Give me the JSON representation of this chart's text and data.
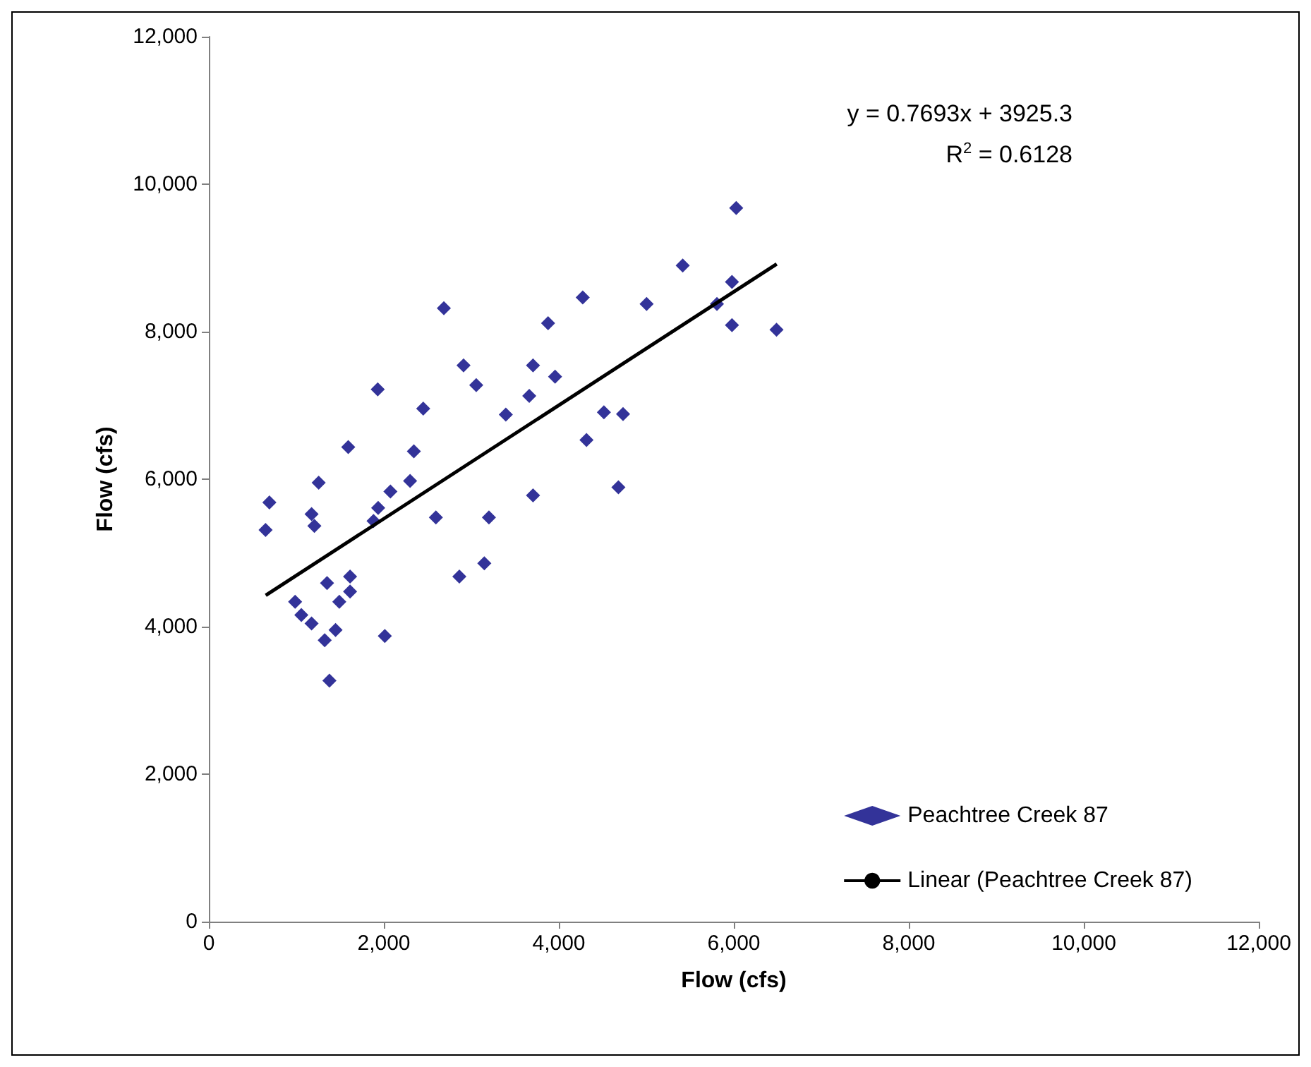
{
  "chart_data": {
    "type": "scatter",
    "xlabel": "Flow (cfs)",
    "ylabel": "Flow (cfs)",
    "xlim": [
      0,
      12000
    ],
    "ylim": [
      0,
      12000
    ],
    "xticks": [
      {
        "value": 0,
        "label": "0"
      },
      {
        "value": 2000,
        "label": "2,000"
      },
      {
        "value": 4000,
        "label": "4,000"
      },
      {
        "value": 6000,
        "label": "6,000"
      },
      {
        "value": 8000,
        "label": "8,000"
      },
      {
        "value": 10000,
        "label": "10,000"
      },
      {
        "value": 12000,
        "label": "12,000"
      }
    ],
    "yticks": [
      {
        "value": 0,
        "label": "0"
      },
      {
        "value": 2000,
        "label": "2,000"
      },
      {
        "value": 4000,
        "label": "4,000"
      },
      {
        "value": 6000,
        "label": "6,000"
      },
      {
        "value": 8000,
        "label": "8,000"
      },
      {
        "value": 10000,
        "label": "10,000"
      },
      {
        "value": 12000,
        "label": "12,000"
      }
    ],
    "grid": false,
    "legend": "bottom right",
    "marker": "diamond",
    "annotations": [
      "y = 0.7693x + 3925.3",
      "R$^{2}$ = 0.6128"
    ],
    "series": [
      {
        "name": "Peachtree Creek 87",
        "color": "#000080",
        "x": [
          648,
          692,
          986,
          1057,
          1174,
          1174,
          1206,
          1255,
          1351,
          1324,
          1378,
          1448,
          1491,
          1614,
          1614,
          1593,
          1882,
          1935,
          1930,
          2011,
          2075,
          2300,
          2343,
          2450,
          2595,
          2686,
          2863,
          2911,
          3056,
          3148,
          3201,
          3394,
          3662,
          3705,
          3705,
          3877,
          3957,
          4273,
          4316,
          4515,
          4734,
          4681,
          5003,
          5416,
          6027,
          5979,
          5807,
          5979,
          6488
        ],
        "values": [
          5310,
          5685,
          4337,
          4159,
          4044,
          5527,
          5367,
          5952,
          4592,
          3815,
          3268,
          3955,
          4337,
          4680,
          4477,
          6435,
          5432,
          5609,
          7218,
          3873,
          5832,
          5977,
          6378,
          6957,
          5481,
          8318,
          4680,
          7542,
          7275,
          4859,
          5481,
          6875,
          7129,
          7542,
          5780,
          8114,
          7389,
          8464,
          6531,
          6906,
          6882,
          5889,
          8375,
          8896,
          9678,
          8674,
          8375,
          8089,
          8026
        ]
      },
      {
        "name": "Linear (Peachtree Creek 87)",
        "type": "line",
        "color": "#000000",
        "line_style": "solid",
        "marker": "none",
        "x": [
          650,
          6490
        ],
        "values": [
          4425.3,
          8918.1
        ]
      }
    ]
  }
}
